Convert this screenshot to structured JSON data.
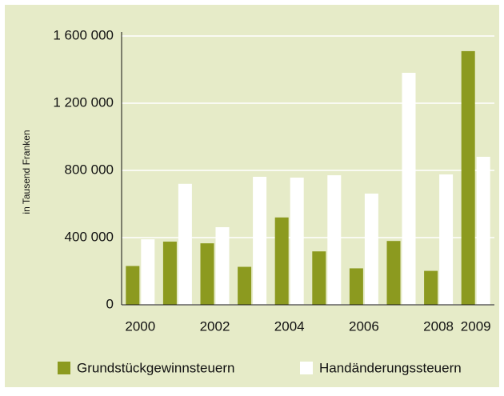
{
  "chart_data": {
    "type": "bar",
    "y_axis_label": "in Tausend Franken",
    "categories": [
      "2000",
      null,
      "2002",
      null,
      "2004",
      null,
      "2006",
      null,
      "2008",
      "2009"
    ],
    "series": [
      {
        "name": "Grundstückgewinnsteuern",
        "color": "#8c9a1f",
        "values": [
          231000,
          376000,
          366000,
          226000,
          520000,
          318000,
          217000,
          380000,
          202000,
          1510000
        ]
      },
      {
        "name": "Handänderungssteuern",
        "color": "#ffffff",
        "values": [
          390000,
          720000,
          462000,
          762000,
          757000,
          771000,
          662000,
          1381000,
          776000,
          881000
        ]
      }
    ],
    "ylim": [
      0,
      1600000
    ],
    "yticks": [
      0,
      {
        "value": 400000,
        "label": "400 000"
      },
      {
        "value": 800000,
        "label": "800 000"
      },
      {
        "value": 1200000,
        "label": "1 200 000"
      },
      {
        "value": 1600000,
        "label": "1 600 000"
      }
    ],
    "grid": true
  }
}
